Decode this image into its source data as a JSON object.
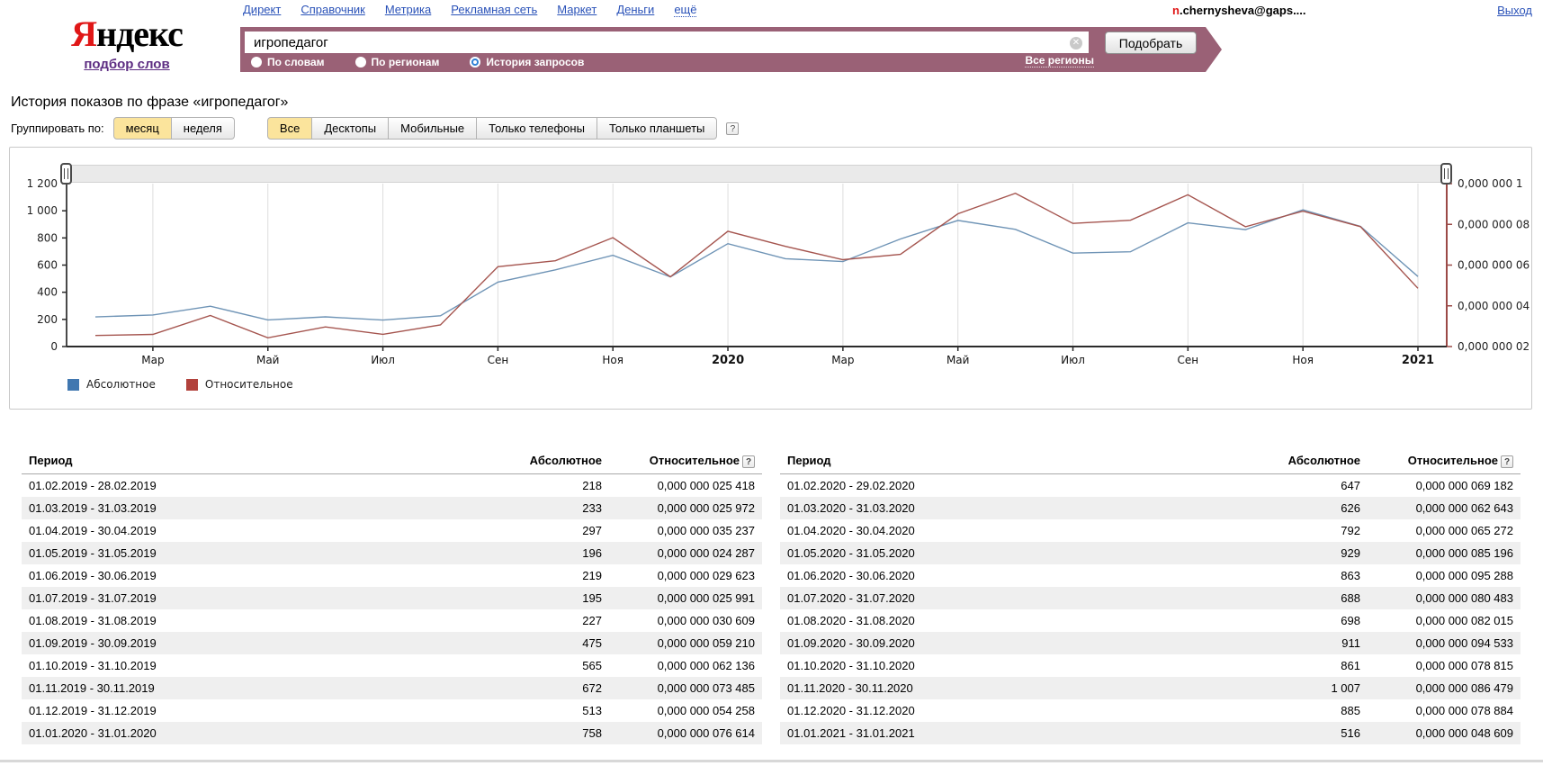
{
  "header": {
    "nav": [
      {
        "label": "Директ"
      },
      {
        "label": "Справочник"
      },
      {
        "label": "Метрика"
      },
      {
        "label": "Рекламная сеть"
      },
      {
        "label": "Маркет"
      },
      {
        "label": "Деньги"
      },
      {
        "label": "ещё",
        "dropdown": true
      }
    ],
    "user": {
      "email_prefix": "n",
      "email_rest": ".chernysheva@gaps....",
      "logout": "Выход"
    },
    "logo": {
      "accent": "Я",
      "rest": "ндекс",
      "subtitle": "подбор слов"
    }
  },
  "search": {
    "query": "игропедагог",
    "submit_label": "Подобрать",
    "clear_icon": "✕",
    "modes": [
      {
        "label": "По словам",
        "selected": false
      },
      {
        "label": "По регионам",
        "selected": false
      },
      {
        "label": "История запросов",
        "selected": true
      }
    ],
    "regions_link": "Все регионы"
  },
  "page_title": "История показов по фразе «игропедагог»",
  "controls": {
    "group_label": "Группировать по:",
    "group_options": [
      {
        "label": "месяц",
        "selected": true
      },
      {
        "label": "неделя",
        "selected": false
      }
    ],
    "device_tabs": [
      {
        "label": "Все",
        "selected": true
      },
      {
        "label": "Десктопы",
        "selected": false
      },
      {
        "label": "Мобильные",
        "selected": false
      },
      {
        "label": "Только телефоны",
        "selected": false
      },
      {
        "label": "Только планшеты",
        "selected": false
      }
    ],
    "help_label": "?"
  },
  "chart_data": {
    "type": "line",
    "title": "История показов по фразе «игропедагог»",
    "grid": "vertical-only",
    "categories": [
      "01.02.2019",
      "01.03.2019",
      "01.04.2019",
      "01.05.2019",
      "01.06.2019",
      "01.07.2019",
      "01.08.2019",
      "01.09.2019",
      "01.10.2019",
      "01.11.2019",
      "01.12.2019",
      "01.01.2020",
      "01.02.2020",
      "01.03.2020",
      "01.04.2020",
      "01.05.2020",
      "01.06.2020",
      "01.07.2020",
      "01.08.2020",
      "01.09.2020",
      "01.10.2020",
      "01.11.2020",
      "01.12.2020",
      "01.01.2021"
    ],
    "x_ticks": [
      {
        "i": 1,
        "label": "Мар"
      },
      {
        "i": 3,
        "label": "Май"
      },
      {
        "i": 5,
        "label": "Июл"
      },
      {
        "i": 7,
        "label": "Сен"
      },
      {
        "i": 9,
        "label": "Ноя"
      },
      {
        "i": 11,
        "label": "2020",
        "bold": true
      },
      {
        "i": 13,
        "label": "Мар"
      },
      {
        "i": 15,
        "label": "Май"
      },
      {
        "i": 17,
        "label": "Июл"
      },
      {
        "i": 19,
        "label": "Сен"
      },
      {
        "i": 21,
        "label": "Ноя"
      },
      {
        "i": 23,
        "label": "2021",
        "bold": true
      }
    ],
    "left_axis": {
      "min": 0,
      "max": 1200,
      "ticks": [
        {
          "v": 0,
          "label": "0"
        },
        {
          "v": 200,
          "label": "200"
        },
        {
          "v": 400,
          "label": "400"
        },
        {
          "v": 600,
          "label": "600"
        },
        {
          "v": 800,
          "label": "800"
        },
        {
          "v": 1000,
          "label": "1 000"
        },
        {
          "v": 1200,
          "label": "1 200"
        }
      ]
    },
    "right_axis": {
      "min": 20,
      "max": 100,
      "unit": "1e-9",
      "ticks": [
        {
          "v": 20,
          "label": "0,000 000 02"
        },
        {
          "v": 40,
          "label": "0,000 000 04"
        },
        {
          "v": 60,
          "label": "0,000 000 06"
        },
        {
          "v": 80,
          "label": "0,000 000 08"
        },
        {
          "v": 100,
          "label": "0,000 000 1"
        }
      ]
    },
    "series": [
      {
        "name": "Абсолютное",
        "axis": "left",
        "line_color": "#6f94b6",
        "legend_color": "#4077b0",
        "values": [
          218,
          233,
          297,
          196,
          219,
          195,
          227,
          475,
          565,
          672,
          513,
          758,
          647,
          626,
          792,
          929,
          863,
          688,
          698,
          911,
          861,
          1007,
          885,
          516
        ]
      },
      {
        "name": "Относительное",
        "axis": "right",
        "line_color": "#a5554f",
        "legend_color": "#b2423c",
        "values": [
          25.418,
          25.972,
          35.237,
          24.287,
          29.623,
          25.991,
          30.609,
          59.21,
          62.136,
          73.485,
          54.258,
          76.614,
          69.182,
          62.643,
          65.272,
          85.196,
          95.288,
          80.483,
          82.015,
          94.533,
          78.815,
          86.479,
          78.884,
          48.609
        ]
      }
    ]
  },
  "tables": {
    "headers": [
      "Период",
      "Абсолютное",
      "Относительное"
    ],
    "help_label": "?",
    "left_rows": [
      [
        "01.02.2019 - 28.02.2019",
        "218",
        "0,000 000 025 418"
      ],
      [
        "01.03.2019 - 31.03.2019",
        "233",
        "0,000 000 025 972"
      ],
      [
        "01.04.2019 - 30.04.2019",
        "297",
        "0,000 000 035 237"
      ],
      [
        "01.05.2019 - 31.05.2019",
        "196",
        "0,000 000 024 287"
      ],
      [
        "01.06.2019 - 30.06.2019",
        "219",
        "0,000 000 029 623"
      ],
      [
        "01.07.2019 - 31.07.2019",
        "195",
        "0,000 000 025 991"
      ],
      [
        "01.08.2019 - 31.08.2019",
        "227",
        "0,000 000 030 609"
      ],
      [
        "01.09.2019 - 30.09.2019",
        "475",
        "0,000 000 059 210"
      ],
      [
        "01.10.2019 - 31.10.2019",
        "565",
        "0,000 000 062 136"
      ],
      [
        "01.11.2019 - 30.11.2019",
        "672",
        "0,000 000 073 485"
      ],
      [
        "01.12.2019 - 31.12.2019",
        "513",
        "0,000 000 054 258"
      ],
      [
        "01.01.2020 - 31.01.2020",
        "758",
        "0,000 000 076 614"
      ]
    ],
    "right_rows": [
      [
        "01.02.2020 - 29.02.2020",
        "647",
        "0,000 000 069 182"
      ],
      [
        "01.03.2020 - 31.03.2020",
        "626",
        "0,000 000 062 643"
      ],
      [
        "01.04.2020 - 30.04.2020",
        "792",
        "0,000 000 065 272"
      ],
      [
        "01.05.2020 - 31.05.2020",
        "929",
        "0,000 000 085 196"
      ],
      [
        "01.06.2020 - 30.06.2020",
        "863",
        "0,000 000 095 288"
      ],
      [
        "01.07.2020 - 31.07.2020",
        "688",
        "0,000 000 080 483"
      ],
      [
        "01.08.2020 - 31.08.2020",
        "698",
        "0,000 000 082 015"
      ],
      [
        "01.09.2020 - 30.09.2020",
        "911",
        "0,000 000 094 533"
      ],
      [
        "01.10.2020 - 31.10.2020",
        "861",
        "0,000 000 078 815"
      ],
      [
        "01.11.2020 - 30.11.2020",
        "1 007",
        "0,000 000 086 479"
      ],
      [
        "01.12.2020 - 31.12.2020",
        "885",
        "0,000 000 078 884"
      ],
      [
        "01.01.2021 - 31.01.2021",
        "516",
        "0,000 000 048 609"
      ]
    ]
  }
}
